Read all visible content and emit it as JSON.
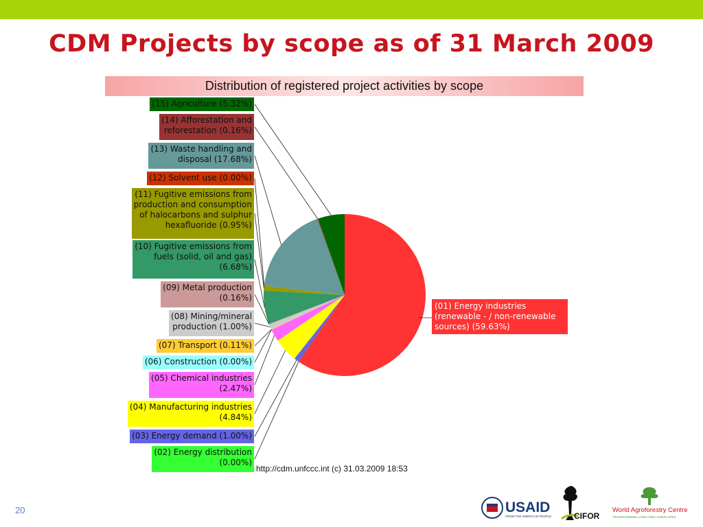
{
  "slide": {
    "title": "CDM Projects by scope as of 31 March 2009",
    "number": "20",
    "source": "http://cdm.unfccc.int (c) 31.03.2009 18:53",
    "logos": {
      "usaid": "USAID",
      "usaid_tagline": "FROM THE AMERICAN PEOPLE",
      "cifor": "CIFOR",
      "icraf": "World Agroforestry Centre",
      "icraf_tagline": "TRANSFORMING LIVES AND LANDSCAPES"
    },
    "colors": {
      "topbar": "#a8d40c",
      "title": "#c8141e"
    }
  },
  "chart_data": {
    "type": "pie",
    "title": "Distribution of registered project activities by scope",
    "slices": [
      {
        "id": "01",
        "label": "(01) Energy industries (renewable - / non-renewable sources) (59.63%)",
        "value": 59.63,
        "color": "#ff3333",
        "text_color": "#ffffff"
      },
      {
        "id": "02",
        "label": "(02) Energy distribution (0.00%)",
        "value": 0.0,
        "color": "#33ff33",
        "text_color": "#111111"
      },
      {
        "id": "03",
        "label": "(03) Energy demand (1.00%)",
        "value": 1.0,
        "color": "#6464e6",
        "text_color": "#111111"
      },
      {
        "id": "04",
        "label": "(04) Manufacturing industries (4.84%)",
        "value": 4.84,
        "color": "#ffff00",
        "text_color": "#111111"
      },
      {
        "id": "05",
        "label": "(05) Chemical industries (2.47%)",
        "value": 2.47,
        "color": "#ff66ff",
        "text_color": "#111111"
      },
      {
        "id": "06",
        "label": "(06) Construction (0.00%)",
        "value": 0.0,
        "color": "#99ffff",
        "text_color": "#111111"
      },
      {
        "id": "07",
        "label": "(07) Transport (0.11%)",
        "value": 0.11,
        "color": "#ffcc33",
        "text_color": "#111111"
      },
      {
        "id": "08",
        "label": "(08) Mining/mineral production (1.00%)",
        "value": 1.0,
        "color": "#cccccc",
        "text_color": "#111111"
      },
      {
        "id": "09",
        "label": "(09) Metal production (0.16%)",
        "value": 0.16,
        "color": "#cc9999",
        "text_color": "#111111"
      },
      {
        "id": "10",
        "label": "(10) Fugitive emissions from fuels (solid, oil and gas) (6.68%)",
        "value": 6.68,
        "color": "#339966",
        "text_color": "#111111"
      },
      {
        "id": "11",
        "label": "(11) Fugitive emissions from production and consumption of halocarbons and sulphur hexafluoride (0.95%)",
        "value": 0.95,
        "color": "#999900",
        "text_color": "#111111"
      },
      {
        "id": "12",
        "label": "(12) Solvent use (0.00%)",
        "value": 0.0,
        "color": "#cc3300",
        "text_color": "#111111"
      },
      {
        "id": "13",
        "label": "(13) Waste handling and disposal (17.68%)",
        "value": 17.68,
        "color": "#669999",
        "text_color": "#111111"
      },
      {
        "id": "14",
        "label": "(14) Afforestation and reforestation (0.16%)",
        "value": 0.16,
        "color": "#993333",
        "text_color": "#111111"
      },
      {
        "id": "15",
        "label": "(15) Agriculture (5.32%)",
        "value": 5.32,
        "color": "#006600",
        "text_color": "#111111"
      }
    ],
    "legend_placement": "left and right of pie with leader lines"
  },
  "left_labels": [
    {
      "slice": "15",
      "text": "(15) Agriculture (5.32%)"
    },
    {
      "slice": "14",
      "text": "(14) Afforestation and\nreforestation (0.16%)"
    },
    {
      "slice": "13",
      "text": "(13) Waste handling and\ndisposal (17.68%)"
    },
    {
      "slice": "12",
      "text": "(12) Solvent use (0.00%)"
    },
    {
      "slice": "11",
      "text": "(11) Fugitive emissions from\nproduction and consumption\nof halocarbons and sulphur\nhexafluoride (0.95%)"
    },
    {
      "slice": "10",
      "text": "(10) Fugitive emissions from\nfuels (solid, oil and gas)\n(6.68%)"
    },
    {
      "slice": "09",
      "text": "(09) Metal production\n(0.16%)"
    },
    {
      "slice": "08",
      "text": "(08) Mining/mineral\nproduction (1.00%)"
    },
    {
      "slice": "07",
      "text": "(07) Transport (0.11%)"
    },
    {
      "slice": "06",
      "text": "(06) Construction (0.00%)"
    },
    {
      "slice": "05",
      "text": "(05) Chemical industries\n(2.47%)"
    },
    {
      "slice": "04",
      "text": "(04) Manufacturing industries\n(4.84%)"
    },
    {
      "slice": "03",
      "text": "(03) Energy demand (1.00%)"
    },
    {
      "slice": "02",
      "text": "(02) Energy distribution\n(0.00%)"
    }
  ],
  "right_label": {
    "slice": "01",
    "text": "(01) Energy industries\n(renewable - / non-renewable\nsources) (59.63%)"
  }
}
